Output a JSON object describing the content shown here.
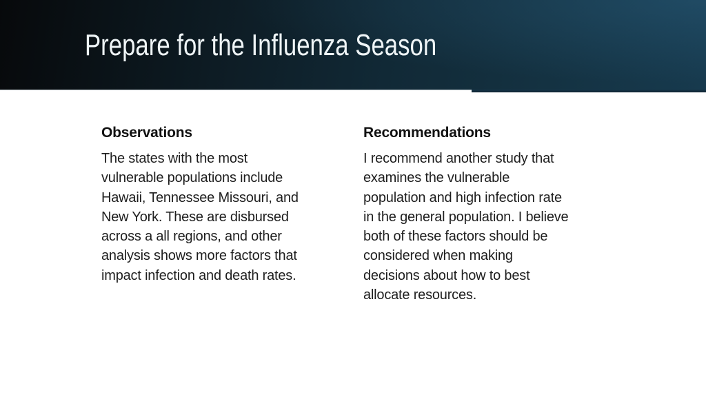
{
  "slide": {
    "title": "Prepare for the Influenza Season",
    "columns": [
      {
        "heading": "Observations",
        "body": "The states with the most\nvulnerable populations include\nHawaii, Tennessee Missouri, and\nNew York. These are disbursed\nacross a all regions, and other\nanalysis shows more factors that\nimpact infection and death rates."
      },
      {
        "heading": "Recommendations",
        "body": "I recommend another study that\nexamines the vulnerable\npopulation and high infection rate\nin the general population. I believe\nboth of these factors should be\nconsidered when making\ndecisions about how to best\nallocate resources."
      }
    ],
    "colors": {
      "header_gradient_dark": "#07090b",
      "header_gradient_teal": "#173a4e",
      "header_highlight": "#2f678a",
      "title_text": "#eef4f6",
      "heading_text": "#111111",
      "body_text": "#1e1e1e",
      "background": "#ffffff",
      "accent_line": "#c7d1d6"
    }
  }
}
